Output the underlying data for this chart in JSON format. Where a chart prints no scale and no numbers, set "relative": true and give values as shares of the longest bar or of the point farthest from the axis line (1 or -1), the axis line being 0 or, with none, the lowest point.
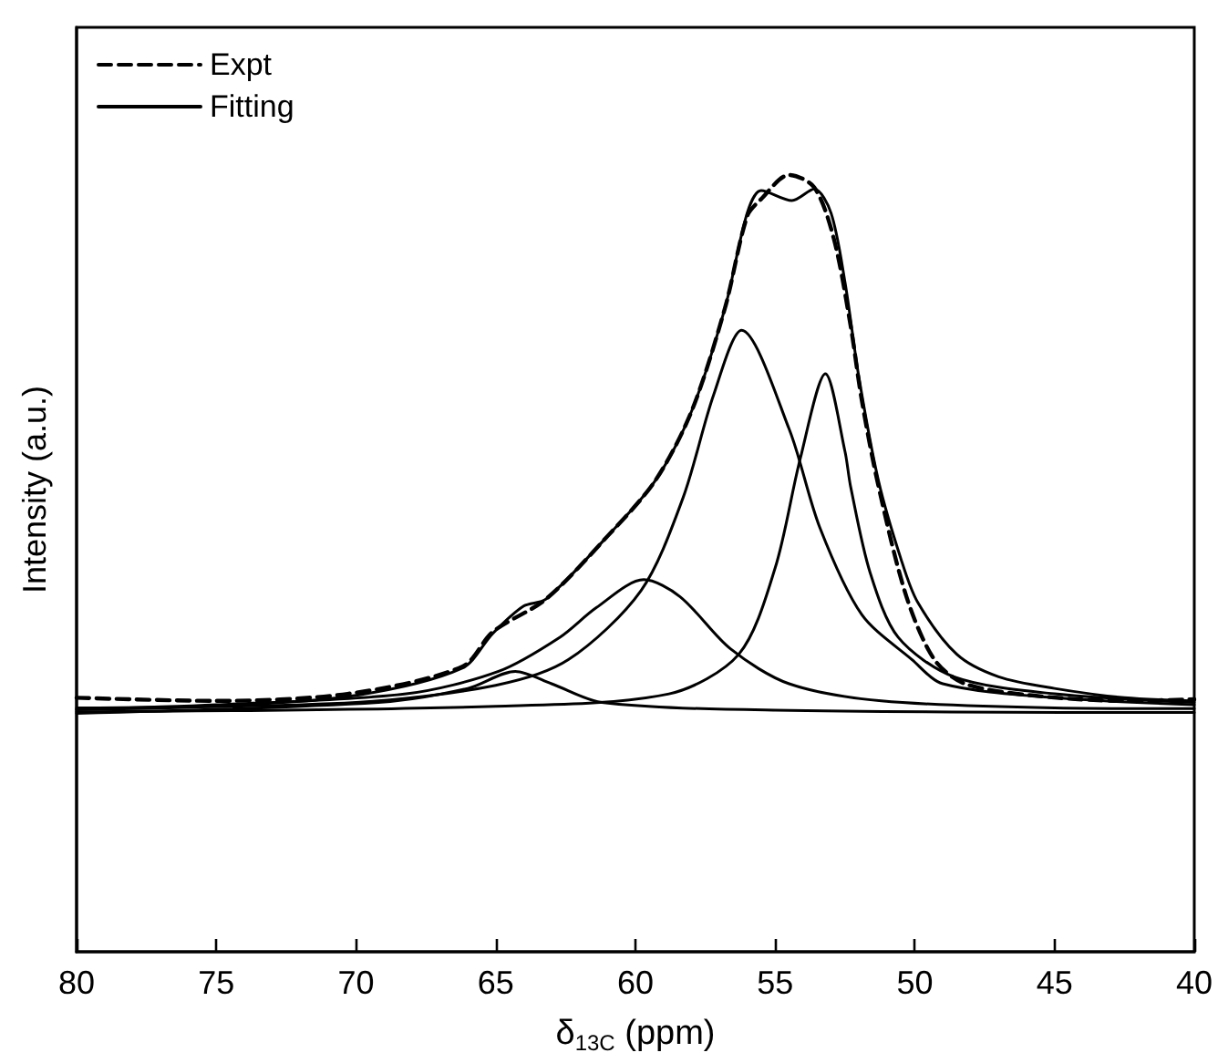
{
  "chart_data": {
    "type": "line",
    "xlabel": "δ$_{13C}$ (ppm)",
    "ylabel": "Intensity (a.u.)",
    "relative": true,
    "xlim": [
      80,
      40
    ],
    "xticks": [
      80,
      75,
      70,
      65,
      60,
      55,
      50,
      45,
      40
    ],
    "tick_labels": "x",
    "grid": false,
    "legend": "top left",
    "marker": "none",
    "series": [
      {
        "name": "Expt",
        "color": "#000000",
        "line_style": "dashed",
        "x": [
          80,
          75.1,
          70.3,
          66.2,
          65.1,
          63.2,
          61,
          59.3,
          58,
          56.8,
          56,
          55.5,
          54.5,
          53.6,
          52.9,
          52.3,
          51.9,
          51.3,
          50.3,
          49.3,
          48.2,
          45.8,
          42.5,
          40
        ],
        "values": [
          0.327,
          0.323,
          0.332,
          0.367,
          0.412,
          0.454,
          0.535,
          0.606,
          0.695,
          0.828,
          0.947,
          0.969,
          1,
          0.984,
          0.918,
          0.806,
          0.71,
          0.599,
          0.457,
          0.376,
          0.345,
          0.33,
          0.323,
          0.325
        ]
      },
      {
        "name": "Fitting",
        "color": "#000000",
        "line_style": "solid",
        "x": [
          80,
          75,
          70,
          66.2,
          65.1,
          64,
          63.2,
          61,
          59.3,
          58,
          56.8,
          56,
          55.5,
          54.4,
          53.6,
          53,
          52.5,
          52,
          51.3,
          50.5,
          49.9,
          48.5,
          47,
          45,
          42.5,
          40
        ],
        "values": [
          0.312,
          0.316,
          0.33,
          0.365,
          0.41,
          0.445,
          0.454,
          0.535,
          0.606,
          0.695,
          0.828,
          0.951,
          0.98,
          0.967,
          0.982,
          0.951,
          0.862,
          0.739,
          0.606,
          0.506,
          0.45,
          0.383,
          0.354,
          0.339,
          0.327,
          0.323
        ]
      },
      {
        "color": "#000000",
        "line_style": "solid",
        "x": [
          80,
          70,
          65,
          62.4,
          59.8,
          58.3,
          57.2,
          56.2,
          54.5,
          53.4,
          51.9,
          50.1,
          49,
          45,
          40
        ],
        "values": [
          0.314,
          0.321,
          0.343,
          0.376,
          0.465,
          0.584,
          0.717,
          0.8,
          0.673,
          0.546,
          0.434,
          0.376,
          0.345,
          0.327,
          0.318
        ]
      },
      {
        "color": "#000000",
        "line_style": "solid",
        "x": [
          80,
          65,
          58.8,
          56.3,
          55,
          54.1,
          53.2,
          52.5,
          52.3,
          51.6,
          50.6,
          48.6,
          45,
          40
        ],
        "values": [
          0.309,
          0.316,
          0.332,
          0.383,
          0.494,
          0.635,
          0.744,
          0.644,
          0.599,
          0.488,
          0.405,
          0.354,
          0.332,
          0.321
        ]
      },
      {
        "color": "#000000",
        "line_style": "solid",
        "x": [
          80,
          75,
          68.2,
          64.9,
          62.7,
          61.4,
          59.7,
          58.4,
          56.6,
          54.5,
          51.2,
          45,
          40
        ],
        "values": [
          0.312,
          0.318,
          0.332,
          0.361,
          0.405,
          0.443,
          0.479,
          0.457,
          0.39,
          0.345,
          0.323,
          0.314,
          0.313
        ]
      },
      {
        "color": "#000000",
        "line_style": "solid",
        "x": [
          80,
          69.2,
          66,
          64.3,
          63,
          61.2,
          55,
          40
        ],
        "values": [
          0.307,
          0.321,
          0.339,
          0.361,
          0.345,
          0.321,
          0.311,
          0.308
        ]
      }
    ]
  }
}
